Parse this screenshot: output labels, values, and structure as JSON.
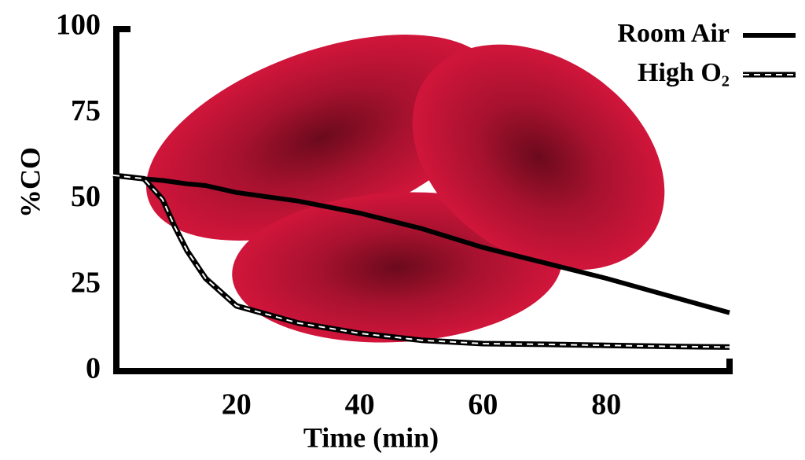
{
  "chart_data": {
    "type": "line",
    "x_label": "Time (min)",
    "y_label": "%CO",
    "x": [
      0,
      5,
      8,
      10,
      12,
      15,
      20,
      30,
      40,
      50,
      60,
      70,
      80,
      90,
      100
    ],
    "series": [
      {
        "name": "Room Air",
        "color": "#000000",
        "style": "solid",
        "values": [
          57,
          56,
          55.5,
          55,
          54.5,
          54,
          52,
          49.5,
          46,
          41.5,
          36,
          31.5,
          27,
          22,
          17
        ]
      },
      {
        "name": "High O₂",
        "color": "#000000",
        "style": "dashed",
        "values": [
          57,
          56,
          50,
          42,
          35,
          27,
          19,
          14,
          11,
          9,
          8,
          7.8,
          7.5,
          7.2,
          7
        ]
      }
    ],
    "xlim": [
      0,
      100
    ],
    "xticks": [
      20,
      40,
      60,
      80
    ],
    "ylim": [
      0,
      100
    ],
    "yticks": [
      0,
      25,
      50,
      75,
      100
    ],
    "grid": false,
    "legend": "top-right"
  }
}
